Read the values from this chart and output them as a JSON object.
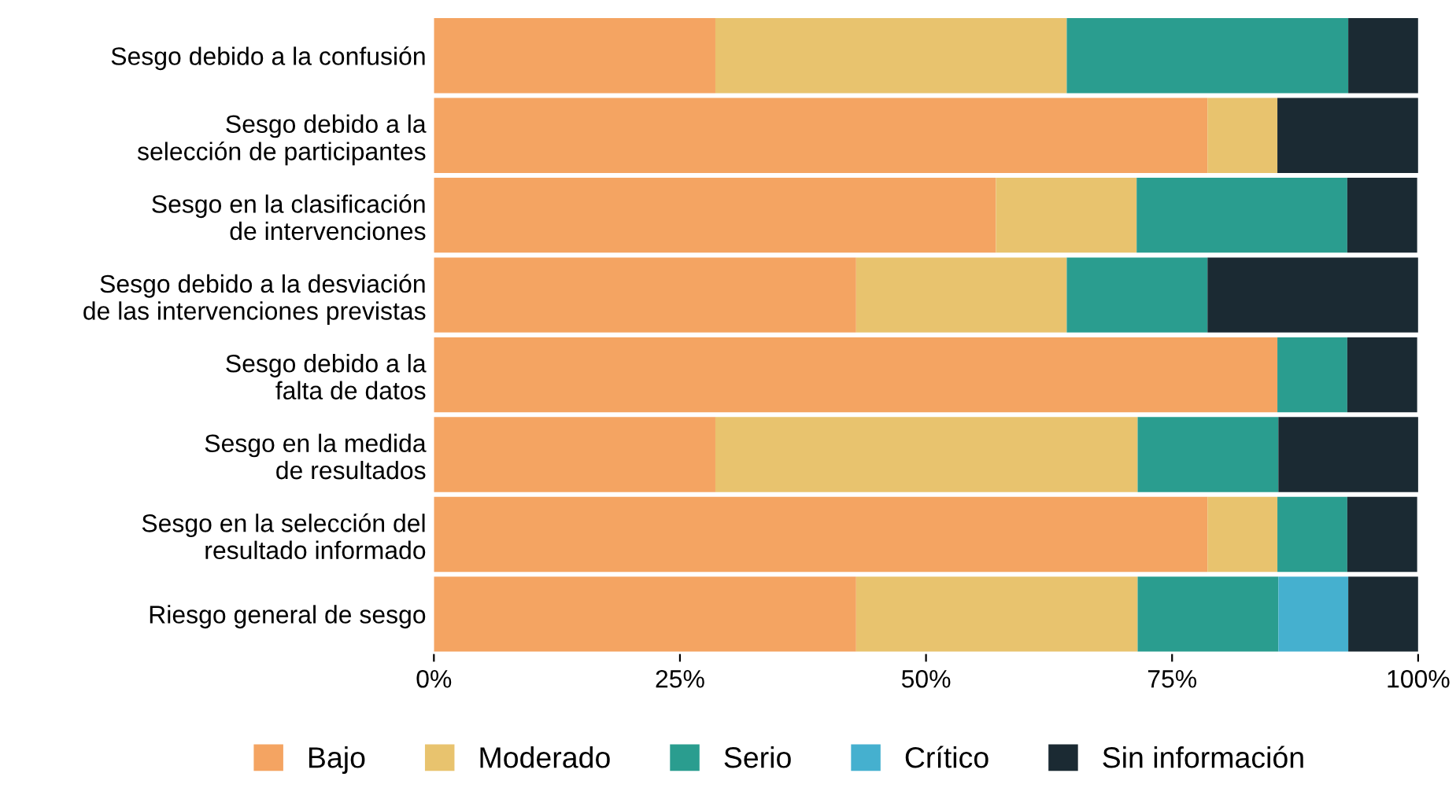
{
  "chart_data": {
    "type": "bar",
    "orientation": "horizontal",
    "stacked": true,
    "categories": [
      "Sesgo debido a la confusión",
      "Sesgo debido a la\nselección de participantes",
      "Sesgo en la clasificación\nde intervenciones",
      "Sesgo debido a la desviación\nde las intervenciones previstas",
      "Sesgo debido a la\nfalta de datos",
      "Sesgo en la medida\nde resultados",
      "Sesgo en la selección del\nresultado informado",
      "Riesgo general de sesgo"
    ],
    "series": [
      {
        "name": "Bajo",
        "color": "#f4a462",
        "values": [
          28.6,
          78.6,
          57.1,
          42.9,
          85.7,
          28.6,
          78.6,
          42.9
        ]
      },
      {
        "name": "Moderado",
        "color": "#e8c36e",
        "values": [
          35.7,
          7.1,
          14.3,
          21.4,
          0,
          42.9,
          7.1,
          28.6
        ]
      },
      {
        "name": "Serio",
        "color": "#2a9d8f",
        "values": [
          28.6,
          0,
          21.4,
          14.3,
          7.1,
          14.3,
          7.1,
          14.3
        ]
      },
      {
        "name": "Crítico",
        "color": "#45b0cf",
        "values": [
          0,
          0,
          0,
          0,
          0,
          0,
          0,
          7.1
        ]
      },
      {
        "name": "Sin información",
        "color": "#1b2a33",
        "values": [
          7.1,
          14.3,
          7.1,
          21.4,
          7.1,
          14.3,
          7.1,
          7.1
        ]
      }
    ],
    "xlim": [
      0,
      100
    ],
    "xticks": [
      {
        "value": 0,
        "label": "0%"
      },
      {
        "value": 25,
        "label": "25%"
      },
      {
        "value": 50,
        "label": "50%"
      },
      {
        "value": 75,
        "label": "75%"
      },
      {
        "value": 100,
        "label": "100%"
      }
    ],
    "grid": false,
    "legend": "bottom"
  }
}
